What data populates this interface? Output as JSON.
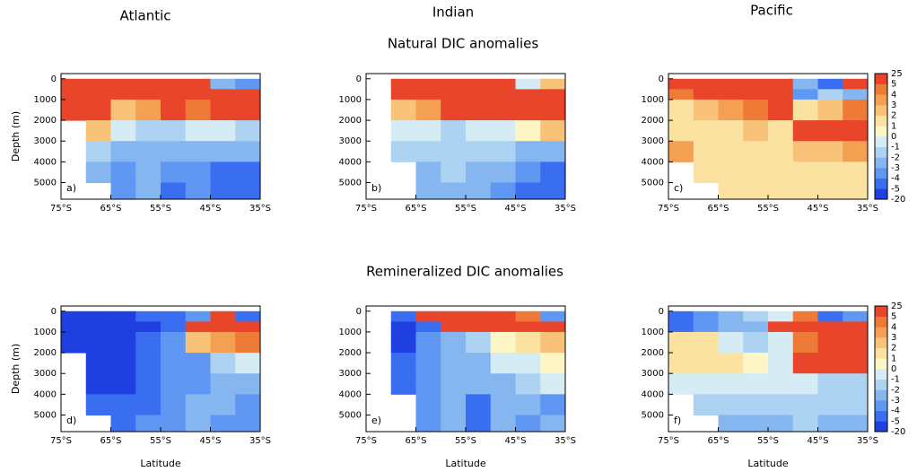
{
  "figure": {
    "columns": [
      "Atlantic",
      "Indian",
      "Pacific"
    ],
    "rows": [
      "Natural DIC anomalies",
      "Remineralized DIC anomalies"
    ]
  },
  "chart_data": [
    {
      "type": "heatmap",
      "label": "a)",
      "ylabel": "Depth (m)",
      "xbins": [
        -75,
        -70,
        -65,
        -60,
        -55,
        -50,
        -45,
        -40,
        -35
      ],
      "ybins": [
        0,
        500,
        1000,
        2000,
        3000,
        4000,
        5000,
        5800
      ],
      "z": [
        [
          25,
          25,
          25,
          25,
          25,
          5,
          -3,
          -4
        ],
        [
          25,
          25,
          25,
          25,
          25,
          25,
          25,
          25
        ],
        [
          25,
          5,
          2,
          3,
          25,
          4,
          5,
          5
        ],
        [
          null,
          2,
          -1,
          -2,
          -2,
          -1,
          -1,
          -2
        ],
        [
          null,
          -2,
          -3,
          -3,
          -3,
          -3,
          -3,
          -3
        ],
        [
          null,
          -3,
          -4,
          -3,
          -4,
          -4,
          -5,
          -5
        ],
        [
          null,
          null,
          -4,
          -3,
          -5,
          -4,
          -5,
          -5
        ]
      ],
      "xlim": [
        -75,
        -35
      ],
      "ylim": [
        5800,
        -250
      ],
      "xticks": [
        {
          "value": -75,
          "label": "75°S"
        },
        {
          "value": -65,
          "label": "65°S"
        },
        {
          "value": -55,
          "label": "55°S"
        },
        {
          "value": -45,
          "label": "45°S"
        },
        {
          "value": -35,
          "label": "35°S"
        }
      ],
      "yticks": [
        0,
        1000,
        2000,
        3000,
        4000,
        5000
      ]
    },
    {
      "type": "heatmap",
      "label": "b)",
      "xbins": [
        -75,
        -70,
        -65,
        -60,
        -55,
        -50,
        -45,
        -40,
        -35
      ],
      "ybins": [
        0,
        500,
        1000,
        2000,
        3000,
        4000,
        5000,
        5800
      ],
      "z": [
        [
          null,
          25,
          25,
          25,
          25,
          25,
          -1,
          2
        ],
        [
          null,
          25,
          25,
          25,
          25,
          25,
          25,
          25
        ],
        [
          null,
          2,
          3,
          5,
          25,
          25,
          25,
          25
        ],
        [
          null,
          -1,
          -1,
          -2,
          -1,
          -1,
          0,
          2
        ],
        [
          null,
          -2,
          -2,
          -2,
          -2,
          -2,
          -3,
          -3
        ],
        [
          null,
          null,
          -3,
          -2,
          -3,
          -3,
          -4,
          -5
        ],
        [
          null,
          null,
          -3,
          -3,
          -3,
          -4,
          -5,
          -5
        ]
      ],
      "xlim": [
        -75,
        -35
      ],
      "ylim": [
        5800,
        -250
      ],
      "xticks": [
        {
          "value": -75,
          "label": "75°S"
        },
        {
          "value": -65,
          "label": "65°S"
        },
        {
          "value": -55,
          "label": "55°S"
        },
        {
          "value": -45,
          "label": "45°S"
        },
        {
          "value": -35,
          "label": "35°S"
        }
      ],
      "yticks": [
        0,
        1000,
        2000,
        3000,
        4000,
        5000
      ]
    },
    {
      "type": "heatmap",
      "label": "c)",
      "xbins": [
        -75,
        -70,
        -65,
        -60,
        -55,
        -50,
        -45,
        -40,
        -35
      ],
      "ybins": [
        0,
        500,
        1000,
        2000,
        3000,
        4000,
        5000,
        5800
      ],
      "z": [
        [
          25,
          25,
          25,
          25,
          25,
          -3,
          -5,
          5
        ],
        [
          4,
          25,
          25,
          25,
          25,
          -4,
          -2,
          -3
        ],
        [
          1,
          2,
          3,
          4,
          5,
          1,
          2,
          4
        ],
        [
          1,
          1,
          1,
          2,
          1,
          25,
          25,
          25
        ],
        [
          3,
          1,
          1,
          1,
          1,
          2,
          2,
          3
        ],
        [
          null,
          1,
          1,
          1,
          1,
          1,
          1,
          1
        ],
        [
          null,
          null,
          1,
          1,
          1,
          1,
          1,
          1
        ]
      ],
      "xlim": [
        -75,
        -35
      ],
      "ylim": [
        5800,
        -250
      ],
      "xticks": [
        {
          "value": -75,
          "label": "75°S"
        },
        {
          "value": -65,
          "label": "65°S"
        },
        {
          "value": -55,
          "label": "55°S"
        },
        {
          "value": -45,
          "label": "45°S"
        },
        {
          "value": -35,
          "label": "35°S"
        }
      ],
      "yticks": [
        0,
        1000,
        2000,
        3000,
        4000,
        5000
      ],
      "colorbar": {
        "levels": [
          -20,
          -5,
          -4,
          -3,
          -2,
          -1,
          0,
          1,
          2,
          3,
          4,
          5,
          25
        ]
      }
    },
    {
      "type": "heatmap",
      "label": "d)",
      "ylabel": "Depth (m)",
      "xlabel": "Latitude",
      "xbins": [
        -75,
        -70,
        -65,
        -60,
        -55,
        -50,
        -45,
        -40,
        -35
      ],
      "ybins": [
        0,
        500,
        1000,
        2000,
        3000,
        4000,
        5000,
        5800
      ],
      "z": [
        [
          -20,
          -20,
          -20,
          -5,
          -5,
          -4,
          25,
          -5
        ],
        [
          -20,
          -20,
          -20,
          -20,
          -5,
          25,
          25,
          25
        ],
        [
          -20,
          -20,
          -20,
          -5,
          -4,
          2,
          3,
          4
        ],
        [
          null,
          -20,
          -20,
          -5,
          -4,
          -4,
          -2,
          -1
        ],
        [
          null,
          -20,
          -20,
          -5,
          -4,
          -4,
          -3,
          -3
        ],
        [
          null,
          -5,
          -5,
          -5,
          -4,
          -3,
          -3,
          -4
        ],
        [
          null,
          null,
          -5,
          -4,
          -4,
          -3,
          -4,
          -4
        ]
      ],
      "xlim": [
        -75,
        -35
      ],
      "ylim": [
        5800,
        -250
      ],
      "xticks": [
        {
          "value": -75,
          "label": "75°S"
        },
        {
          "value": -65,
          "label": "65°S"
        },
        {
          "value": -55,
          "label": "55°S"
        },
        {
          "value": -45,
          "label": "45°S"
        },
        {
          "value": -35,
          "label": "35°S"
        }
      ],
      "yticks": [
        0,
        1000,
        2000,
        3000,
        4000,
        5000
      ]
    },
    {
      "type": "heatmap",
      "label": "e)",
      "xlabel": "Latitude",
      "xbins": [
        -75,
        -70,
        -65,
        -60,
        -55,
        -50,
        -45,
        -40,
        -35
      ],
      "ybins": [
        0,
        500,
        1000,
        2000,
        3000,
        4000,
        5000,
        5800
      ],
      "z": [
        [
          null,
          -5,
          25,
          25,
          25,
          25,
          4,
          -4
        ],
        [
          null,
          -20,
          -5,
          5,
          25,
          25,
          25,
          25
        ],
        [
          null,
          -20,
          -4,
          -3,
          -2,
          0,
          1,
          2
        ],
        [
          null,
          -5,
          -4,
          -3,
          -3,
          -1,
          -1,
          0
        ],
        [
          null,
          -5,
          -4,
          -3,
          -3,
          -3,
          -2,
          -1
        ],
        [
          null,
          null,
          -4,
          -3,
          -5,
          -3,
          -3,
          -4
        ],
        [
          null,
          null,
          -4,
          -3,
          -5,
          -3,
          -4,
          -3
        ]
      ],
      "xlim": [
        -75,
        -35
      ],
      "ylim": [
        5800,
        -250
      ],
      "xticks": [
        {
          "value": -75,
          "label": "75°S"
        },
        {
          "value": -65,
          "label": "65°S"
        },
        {
          "value": -55,
          "label": "55°S"
        },
        {
          "value": -45,
          "label": "45°S"
        },
        {
          "value": -35,
          "label": "35°S"
        }
      ],
      "yticks": [
        0,
        1000,
        2000,
        3000,
        4000,
        5000
      ]
    },
    {
      "type": "heatmap",
      "label": "f)",
      "xlabel": "Latitude",
      "xbins": [
        -75,
        -70,
        -65,
        -60,
        -55,
        -50,
        -45,
        -40,
        -35
      ],
      "ybins": [
        0,
        500,
        1000,
        2000,
        3000,
        4000,
        5000,
        5800
      ],
      "z": [
        [
          -5,
          -4,
          -3,
          -2,
          -1,
          4,
          -5,
          -4
        ],
        [
          -5,
          -4,
          -3,
          -3,
          5,
          25,
          25,
          25
        ],
        [
          1,
          1,
          -1,
          -2,
          -1,
          4,
          25,
          25
        ],
        [
          1,
          1,
          1,
          0,
          -1,
          25,
          25,
          25
        ],
        [
          -1,
          -1,
          -1,
          -1,
          -1,
          -1,
          -2,
          -2
        ],
        [
          null,
          -2,
          -2,
          -2,
          -2,
          -2,
          -2,
          -2
        ],
        [
          null,
          null,
          -3,
          -3,
          -3,
          -2,
          -3,
          -3
        ]
      ],
      "xlim": [
        -75,
        -35
      ],
      "ylim": [
        5800,
        -250
      ],
      "xticks": [
        {
          "value": -75,
          "label": "75°S"
        },
        {
          "value": -65,
          "label": "65°S"
        },
        {
          "value": -55,
          "label": "55°S"
        },
        {
          "value": -45,
          "label": "45°S"
        },
        {
          "value": -35,
          "label": "35°S"
        }
      ],
      "yticks": [
        0,
        1000,
        2000,
        3000,
        4000,
        5000
      ],
      "colorbar": {
        "levels": [
          -20,
          -5,
          -4,
          -3,
          -2,
          -1,
          0,
          1,
          2,
          3,
          4,
          5,
          25
        ]
      }
    }
  ],
  "colors": [
    "#1f3fe0",
    "#3a6ef0",
    "#5f97f2",
    "#86b6f0",
    "#aed3f2",
    "#d6ecf5",
    "#fff6c8",
    "#fbe2a0",
    "#f8c278",
    "#f4a053",
    "#ee7a38",
    "#e8452a"
  ]
}
